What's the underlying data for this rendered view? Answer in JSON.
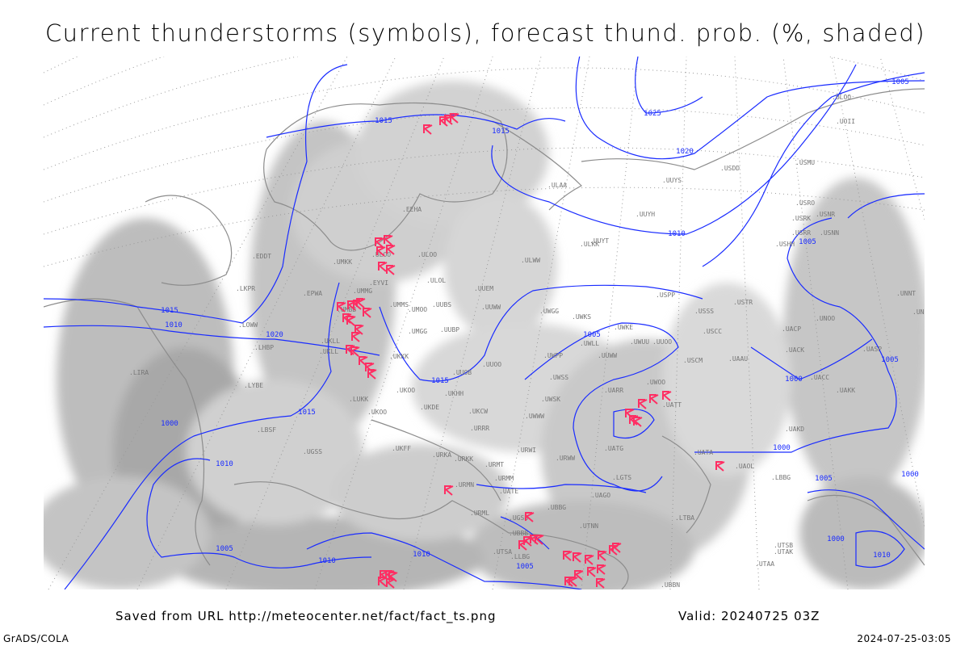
{
  "title": "Current thunderstorms (symbols), forecast thund. prob. (%, shaded)",
  "footer": {
    "source": "Saved from URL http://meteocenter.net/fact/fact_ts.png",
    "valid": "Valid: 20240725 03Z",
    "software": "GrADS/COLA",
    "timestamp": "2024-07-25-03:05"
  },
  "map": {
    "isobar_color": "#1a2cff",
    "storm_color": "#ff2e63",
    "shade_color": "#c8c8c8",
    "coast_color": "#8c8c8c",
    "storm_icon": "thunderstorm-symbol",
    "isobar_labels": [
      "1015",
      "1015",
      "1025",
      "1020",
      "1010",
      "1015",
      "1010",
      "1020",
      "1015",
      "1015",
      "1010",
      "1010",
      "1005",
      "1010",
      "1000",
      "1005",
      "1000",
      "1000",
      "1005",
      "1005",
      "1000",
      "1000",
      "1010",
      "1005",
      "1005",
      "1005"
    ],
    "stations": [
      "ULOO",
      "UOII",
      "ULOO",
      "USDD",
      "UUYS",
      "ULAA",
      "USMU",
      "UUYH",
      "USRO",
      "USNR",
      "USRK",
      "USRR",
      "USNN",
      "EEHA",
      "UUYT",
      "ULKK",
      "USHH",
      "ULWW",
      "EDDT",
      "UMKK",
      "ULOO",
      "ULOL",
      "UUEM",
      "EPWA",
      "EYVI",
      "UMMG",
      "UMMS",
      "UMOO",
      "UUBS",
      "UUWW",
      "UWGG",
      "UWKS",
      "USPP",
      "USSS",
      "USTR",
      "UMBB",
      "UMGG",
      "UUBP",
      "UWKE",
      "USCC",
      "UUOO",
      "UNOO",
      "UKLL",
      "UKKK",
      "UKLL",
      "UUWW",
      "UWPP",
      "UWLL",
      "UWUU",
      "USCM",
      "UAAU",
      "UACP",
      "UACK",
      "UNNT",
      "UNBB",
      "LIRA",
      "LKPR",
      "LOWW",
      "LHBP",
      "UUOO",
      "UUOB",
      "UASP",
      "UWSS",
      "UACC",
      "LYBE",
      "LUKK",
      "UKHH",
      "UKOO",
      "UKDE",
      "UKCW",
      "UWSK",
      "UWWW",
      "UARR",
      "UWOO",
      "UATT",
      "UAKK",
      "UKOO",
      "URRR",
      "UAKD",
      "LBSF",
      "URWI",
      "UATG",
      "UKFF",
      "URKA",
      "URKK",
      "URMT",
      "URWW",
      "UATA",
      "UAOL",
      "LBBG",
      "UGSS",
      "URMN",
      "URMM",
      "UATE",
      "UAGO",
      "LGTS",
      "UGSB",
      "URML",
      "UBBG",
      "UBBB",
      "UTNN",
      "LTBA",
      "UTSA",
      "UTSB",
      "UTAK",
      "UTAA",
      "UBBN",
      "LLBG"
    ]
  }
}
